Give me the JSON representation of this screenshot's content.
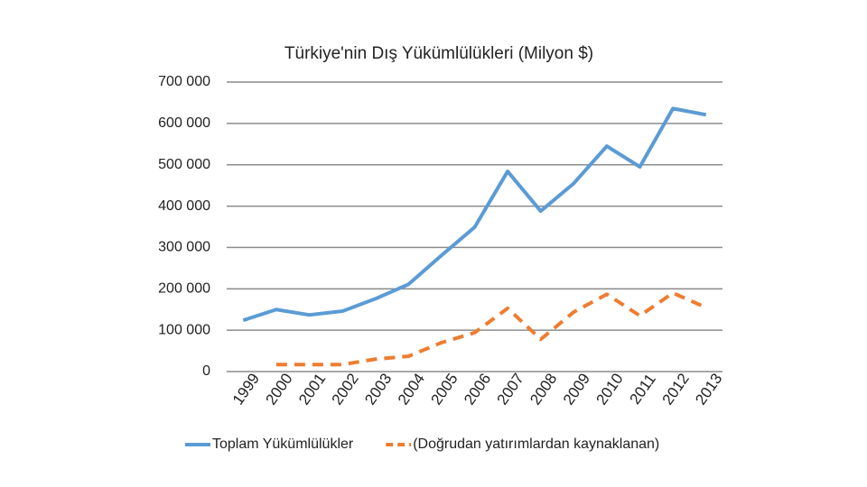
{
  "chart_data": {
    "type": "line",
    "title": "Türkiye'nin Dış Yükümlülükleri (Milyon $)",
    "categories": [
      "1999",
      "2000",
      "2001",
      "2002",
      "2003",
      "2004",
      "2005",
      "2006",
      "2007",
      "2008",
      "2009",
      "2010",
      "2011",
      "2012",
      "2013"
    ],
    "series": [
      {
        "name": "Toplam Yükümlülükler",
        "color": "#5b9bd5",
        "dashed": false,
        "values": [
          124000,
          150000,
          137000,
          146000,
          176000,
          211000,
          281000,
          349000,
          484000,
          388000,
          455000,
          545000,
          495000,
          636000,
          621000
        ]
      },
      {
        "name": "(Doğrudan yatırımlardan kaynaklanan)",
        "color": "#ed7d31",
        "dashed": true,
        "values": [
          null,
          17000,
          17000,
          17000,
          30000,
          37000,
          70000,
          94000,
          153000,
          78000,
          144000,
          187000,
          135000,
          190000,
          155000
        ]
      }
    ],
    "ylim": [
      0,
      700000
    ],
    "yticks": [
      0,
      {
        "value": 100000,
        "label": "100 000"
      },
      {
        "value": 200000,
        "label": "200 000"
      },
      {
        "value": 300000,
        "label": "300 000"
      },
      {
        "value": 400000,
        "label": "400 000"
      },
      {
        "value": 500000,
        "label": "500 000"
      },
      {
        "value": 600000,
        "label": "600 000"
      },
      {
        "value": 700000,
        "label": "700 000"
      }
    ],
    "grid": true,
    "legend": "bottom"
  }
}
